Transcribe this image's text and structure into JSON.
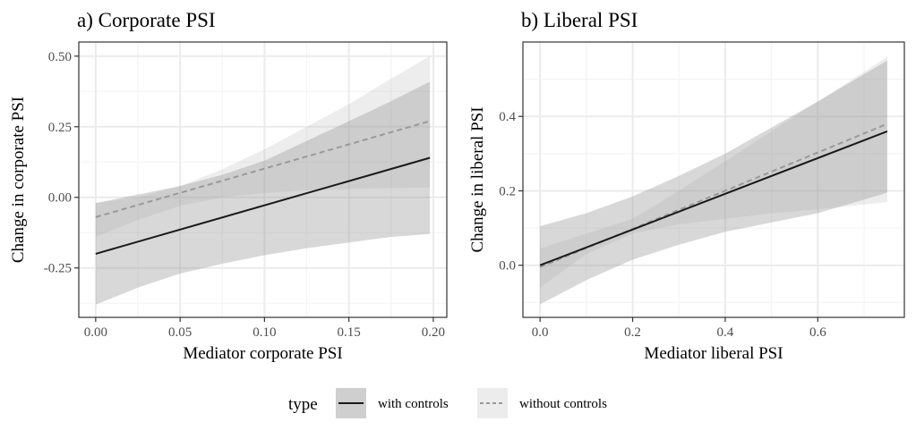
{
  "chart_data": [
    {
      "type": "line",
      "panel": "a",
      "title": "a) Corporate PSI",
      "xlabel": "Mediator corporate PSI",
      "ylabel": "Change in corporate PSI",
      "xlim": [
        -0.01,
        0.208
      ],
      "ylim": [
        -0.425,
        0.55
      ],
      "xticks": [
        0.0,
        0.05,
        0.1,
        0.15,
        0.2
      ],
      "xtick_labels": [
        "0.00",
        "0.05",
        "0.10",
        "0.15",
        "0.20"
      ],
      "yticks": [
        -0.25,
        0.0,
        0.25,
        0.5
      ],
      "ytick_labels": [
        "-0.25",
        "0.00",
        "0.25",
        "0.50"
      ],
      "x_minor": [
        0.025,
        0.075,
        0.125,
        0.175
      ],
      "y_minor": [
        -0.375,
        -0.125,
        0.125,
        0.375
      ],
      "grid": true,
      "series": [
        {
          "name": "without controls",
          "style": "dashed",
          "x": [
            0.0,
            0.198
          ],
          "y": [
            -0.07,
            0.27
          ],
          "ribbon": {
            "x": [
              0.0,
              0.025,
              0.05,
              0.075,
              0.1,
              0.125,
              0.15,
              0.175,
              0.198
            ],
            "lower": [
              -0.14,
              -0.08,
              -0.03,
              0.0,
              0.015,
              0.025,
              0.03,
              0.033,
              0.035
            ],
            "upper": [
              -0.02,
              0.0,
              0.04,
              0.1,
              0.17,
              0.25,
              0.33,
              0.42,
              0.5
            ]
          }
        },
        {
          "name": "with controls",
          "style": "solid",
          "x": [
            0.0,
            0.198
          ],
          "y": [
            -0.2,
            0.14
          ],
          "ribbon": {
            "x": [
              0.0,
              0.025,
              0.05,
              0.075,
              0.1,
              0.125,
              0.15,
              0.175,
              0.198
            ],
            "lower": [
              -0.38,
              -0.32,
              -0.27,
              -0.235,
              -0.205,
              -0.18,
              -0.16,
              -0.14,
              -0.13
            ],
            "upper": [
              -0.02,
              0.01,
              0.04,
              0.08,
              0.13,
              0.2,
              0.27,
              0.34,
              0.41
            ]
          }
        }
      ]
    },
    {
      "type": "line",
      "panel": "b",
      "title": "b) Liberal PSI",
      "xlabel": "Mediator liberal PSI",
      "ylabel": "Change in liberal PSI",
      "xlim": [
        -0.037,
        0.787
      ],
      "ylim": [
        -0.14,
        0.6
      ],
      "xticks": [
        0.0,
        0.2,
        0.4,
        0.6
      ],
      "xtick_labels": [
        "0.0",
        "0.2",
        "0.4",
        "0.6"
      ],
      "yticks": [
        0.0,
        0.2,
        0.4
      ],
      "ytick_labels": [
        "0.0",
        "0.2",
        "0.4"
      ],
      "x_minor": [
        0.1,
        0.3,
        0.5,
        0.7
      ],
      "y_minor": [
        -0.1,
        0.1,
        0.3,
        0.5
      ],
      "grid": true,
      "series": [
        {
          "name": "without controls",
          "style": "dashed",
          "x": [
            0.0,
            0.75
          ],
          "y": [
            -0.005,
            0.38
          ],
          "ribbon": {
            "x": [
              0.0,
              0.1,
              0.2,
              0.3,
              0.4,
              0.5,
              0.6,
              0.75
            ],
            "lower": [
              -0.06,
              0.03,
              0.085,
              0.11,
              0.125,
              0.14,
              0.15,
              0.17
            ],
            "upper": [
              0.045,
              0.085,
              0.125,
              0.2,
              0.28,
              0.36,
              0.44,
              0.56
            ]
          }
        },
        {
          "name": "with controls",
          "style": "solid",
          "x": [
            0.0,
            0.75
          ],
          "y": [
            0.0,
            0.36
          ],
          "ribbon": {
            "x": [
              0.0,
              0.1,
              0.2,
              0.3,
              0.4,
              0.5,
              0.6,
              0.75
            ],
            "lower": [
              -0.105,
              -0.04,
              0.015,
              0.055,
              0.09,
              0.115,
              0.14,
              0.195
            ],
            "upper": [
              0.105,
              0.14,
              0.185,
              0.24,
              0.3,
              0.37,
              0.44,
              0.55
            ]
          }
        }
      ]
    }
  ],
  "legend": {
    "title": "type",
    "placement": "bottom",
    "entries": [
      {
        "label": "with controls",
        "style": "solid"
      },
      {
        "label": "without controls",
        "style": "dashed"
      }
    ]
  },
  "colors": {
    "with_line": "#1a1a1a",
    "without_line": "#999999",
    "with_ribbon": "#c2c2c2",
    "without_ribbon": "#dedede",
    "grid_major": "#ebebeb",
    "grid_minor": "#f4f4f4",
    "panel_border": "#333333",
    "tick": "#333333"
  }
}
